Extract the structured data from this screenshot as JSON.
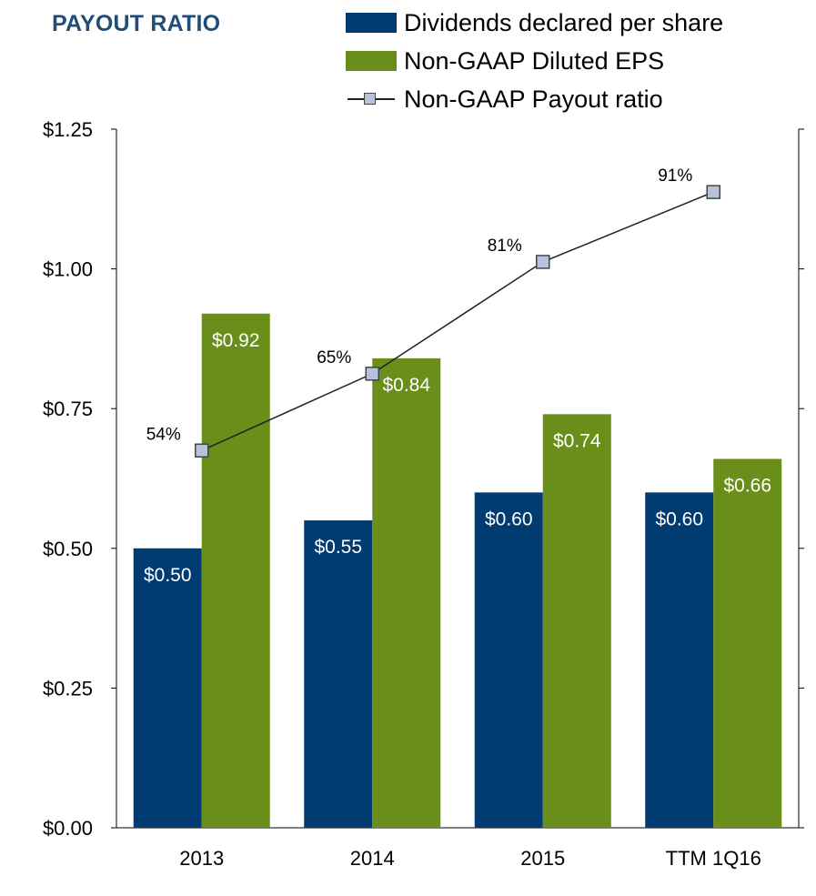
{
  "title": "PAYOUT RATIO",
  "colors": {
    "dividends": "#003c71",
    "eps": "#6a8e1a",
    "marker_fill": "#b8c2dc",
    "line": "#222222"
  },
  "legend": [
    {
      "label": "Dividends declared per share",
      "kind": "bar",
      "color": "#003c71"
    },
    {
      "label": "Non-GAAP Diluted EPS",
      "kind": "bar",
      "color": "#6a8e1a"
    },
    {
      "label": "Non-GAAP Payout ratio",
      "kind": "line"
    }
  ],
  "chart_data": {
    "type": "bar",
    "categories": [
      "2013",
      "2014",
      "2015",
      "TTM 1Q16"
    ],
    "series": [
      {
        "name": "Dividends declared per share",
        "values": [
          0.5,
          0.55,
          0.6,
          0.6
        ],
        "labels": [
          "$0.50",
          "$0.55",
          "$0.60",
          "$0.60"
        ]
      },
      {
        "name": "Non-GAAP Diluted EPS",
        "values": [
          0.92,
          0.84,
          0.74,
          0.66
        ],
        "labels": [
          "$0.92",
          "$0.84",
          "$0.74",
          "$0.66"
        ]
      }
    ],
    "line_series": {
      "name": "Non-GAAP Payout ratio",
      "values": [
        54,
        65,
        81,
        91
      ],
      "labels": [
        "54%",
        "65%",
        "81%",
        "91%"
      ],
      "axis": "secondary",
      "ylim": [
        0,
        100
      ]
    },
    "ylim": [
      0,
      1.25
    ],
    "yticks": [
      0,
      0.25,
      0.5,
      0.75,
      1.0,
      1.25
    ],
    "ytick_labels": [
      "$0.00",
      "$0.25",
      "$0.50",
      "$0.75",
      "$1.00",
      "$1.25"
    ],
    "grid": false,
    "legend_position": "top-right"
  }
}
